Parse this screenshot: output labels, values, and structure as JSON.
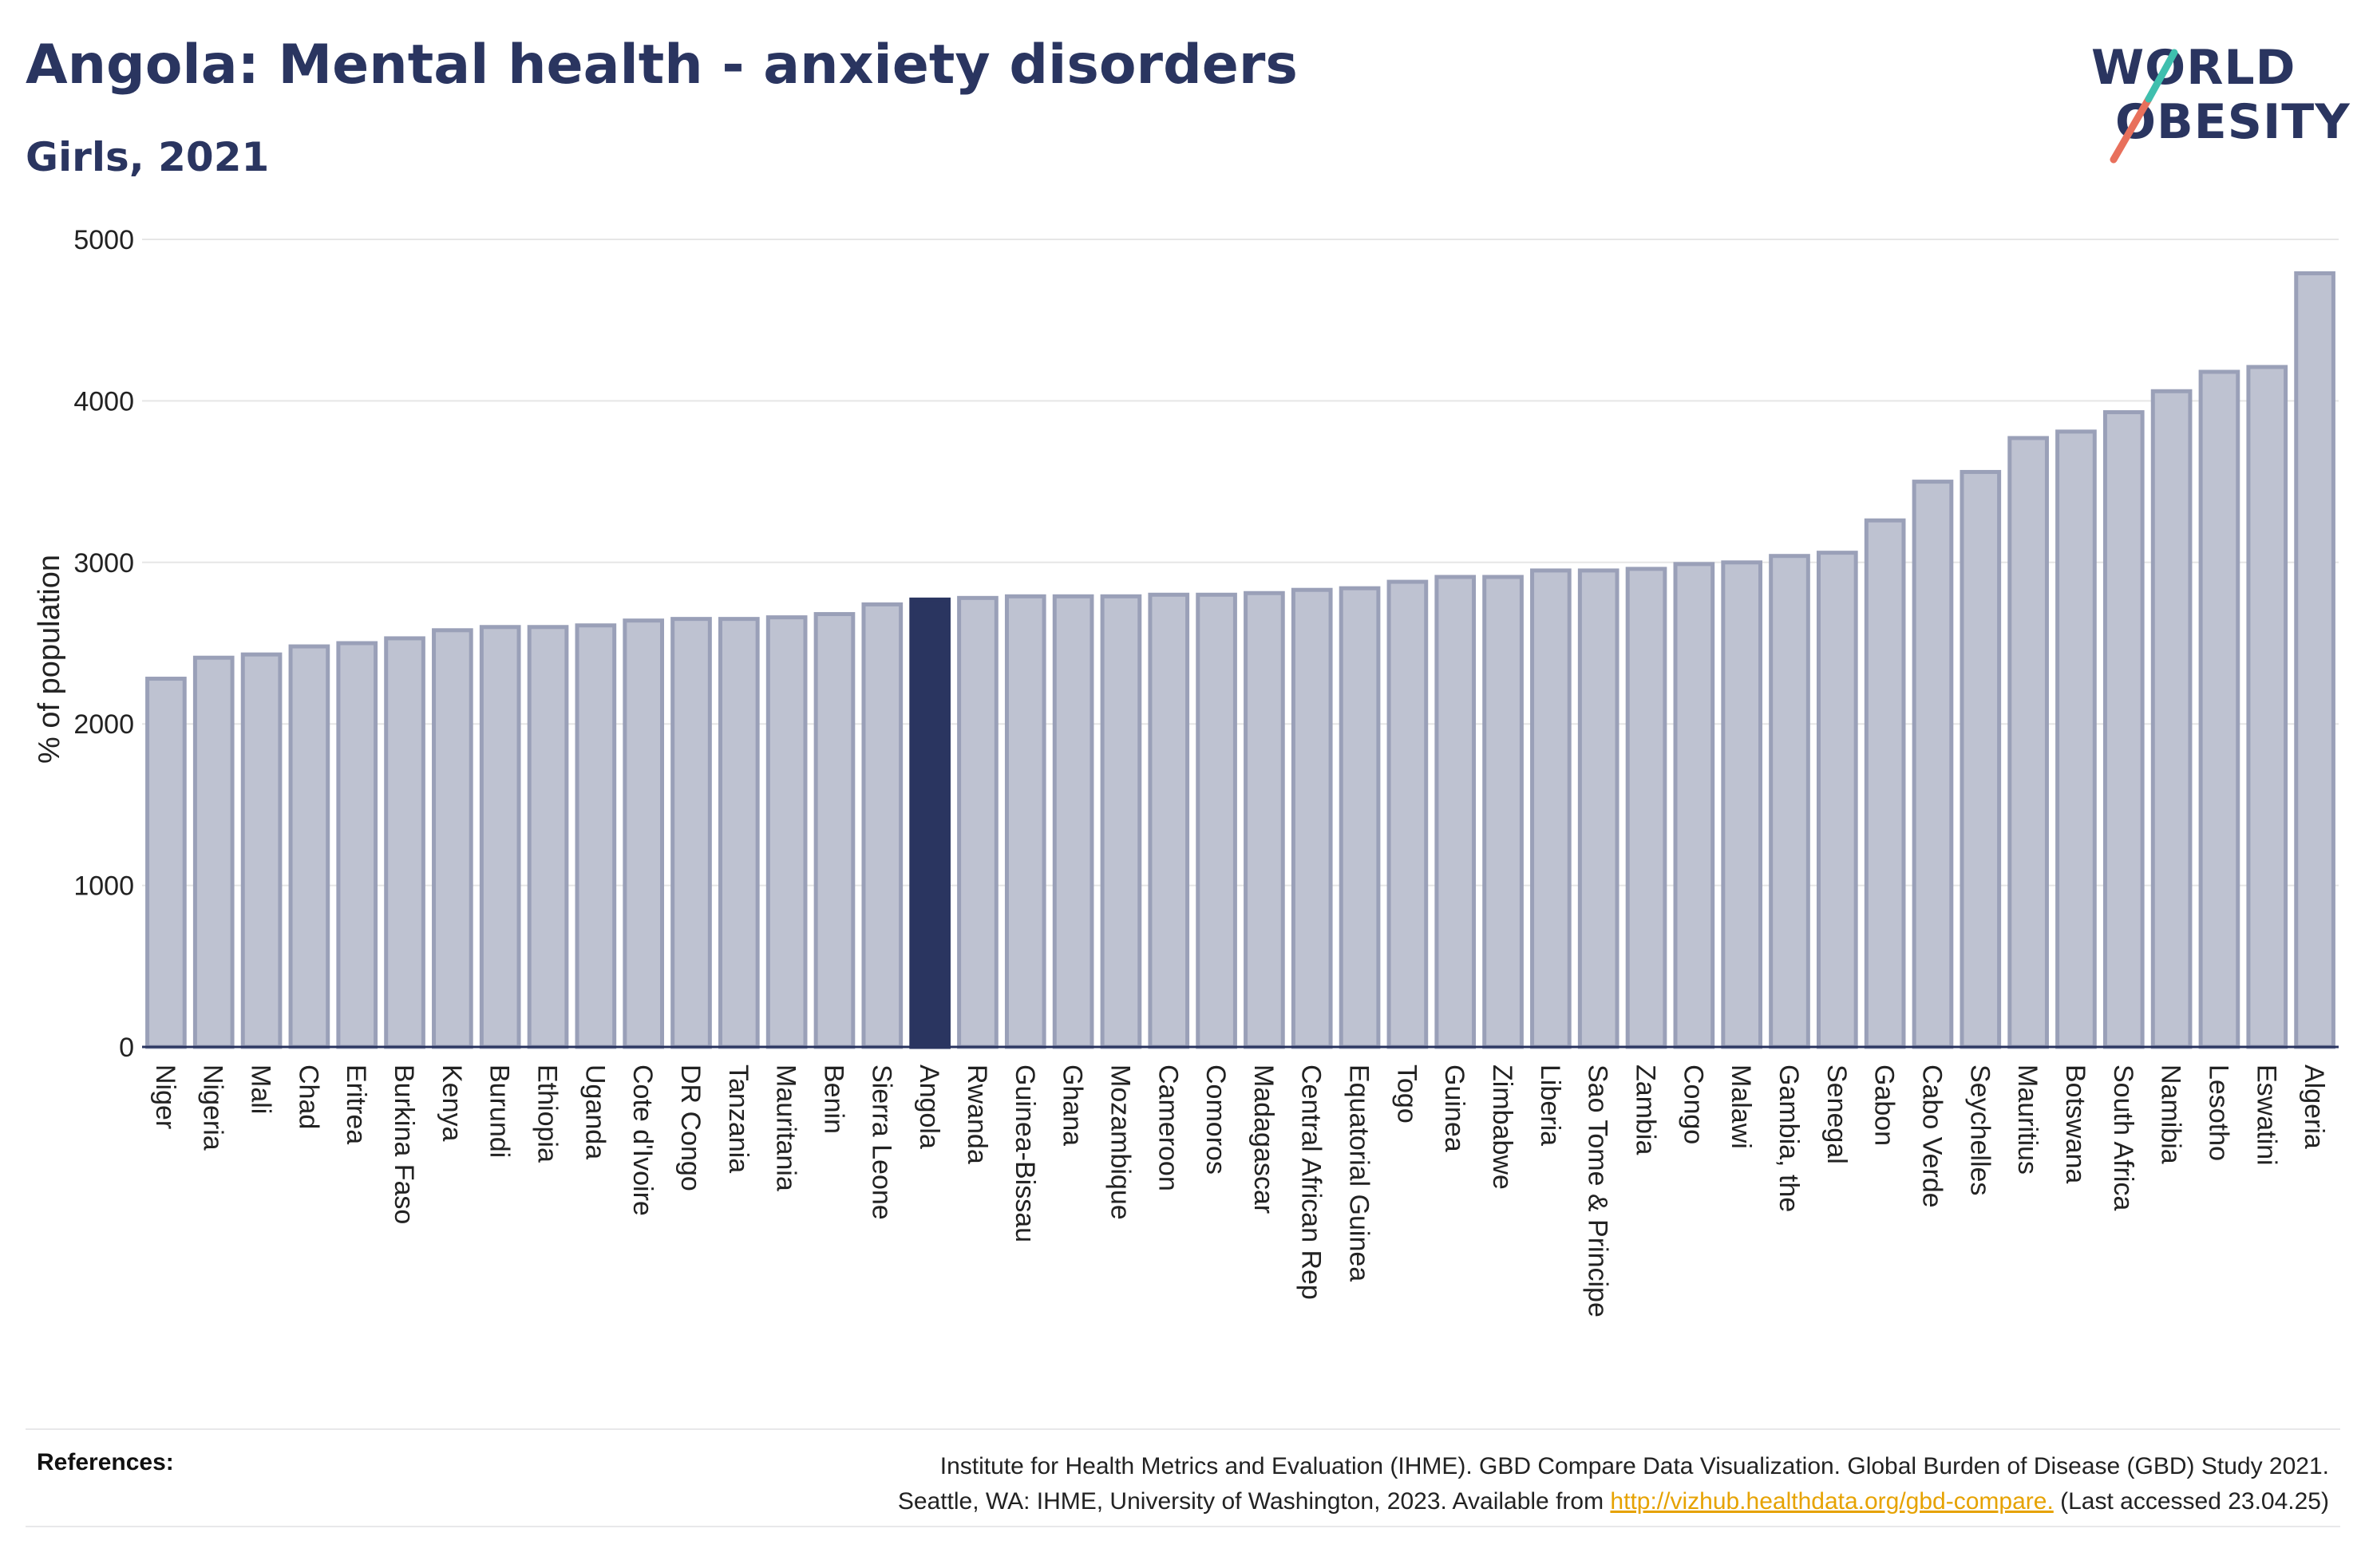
{
  "header": {
    "title": "Angola: Mental health - anxiety disorders",
    "subtitle": "Girls, 2021"
  },
  "logo": {
    "line1": "WORLD",
    "line2": "OBESITY",
    "slash_colors": [
      "#e8705c",
      "#3fbfae"
    ]
  },
  "colors": {
    "bar_default": "#bec2d1",
    "bar_border": "#9aa0b8",
    "bar_highlight": "#2a3560",
    "axis": "#2a3560",
    "grid": "#e6e6e6",
    "text": "#222222"
  },
  "chart_data": {
    "type": "bar",
    "title": "Angola: Mental health - anxiety disorders",
    "subtitle": "Girls, 2021",
    "xlabel": "",
    "ylabel": "% of population",
    "ylim": [
      0,
      5000
    ],
    "yticks": [
      0,
      1000,
      2000,
      3000,
      4000,
      5000
    ],
    "grid": true,
    "highlight": "Angola",
    "categories": [
      "Niger",
      "Nigeria",
      "Mali",
      "Chad",
      "Eritrea",
      "Burkina Faso",
      "Kenya",
      "Burundi",
      "Ethiopia",
      "Uganda",
      "Cote d'Ivoire",
      "DR Congo",
      "Tanzania",
      "Mauritania",
      "Benin",
      "Sierra Leone",
      "Angola",
      "Rwanda",
      "Guinea-Bissau",
      "Ghana",
      "Mozambique",
      "Cameroon",
      "Comoros",
      "Madagascar",
      "Central African Rep",
      "Equatorial Guinea",
      "Togo",
      "Guinea",
      "Zimbabwe",
      "Liberia",
      "Sao Tome & Principe",
      "Zambia",
      "Congo",
      "Malawi",
      "Gambia, the",
      "Senegal",
      "Gabon",
      "Cabo Verde",
      "Seychelles",
      "Mauritius",
      "Botswana",
      "South Africa",
      "Namibia",
      "Lesotho",
      "Eswatini",
      "Algeria"
    ],
    "values": [
      2280,
      2410,
      2430,
      2480,
      2500,
      2530,
      2580,
      2600,
      2600,
      2610,
      2640,
      2650,
      2650,
      2660,
      2680,
      2740,
      2770,
      2780,
      2790,
      2790,
      2790,
      2800,
      2800,
      2810,
      2830,
      2840,
      2880,
      2910,
      2910,
      2950,
      2950,
      2960,
      2990,
      3000,
      3040,
      3060,
      3260,
      3500,
      3560,
      3770,
      3810,
      3930,
      4060,
      4180,
      4210,
      4790
    ]
  },
  "references": {
    "label": "References:",
    "line1": "Institute for Health Metrics and Evaluation (IHME). GBD Compare Data Visualization. Global Burden of Disease (GBD) Study 2021.",
    "line2_prefix": "Seattle, WA: IHME, University of Washington, 2023. Available from ",
    "link": "http://vizhub.healthdata.org/gbd-compare.",
    "line2_suffix": " (Last accessed 23.04.25)"
  }
}
